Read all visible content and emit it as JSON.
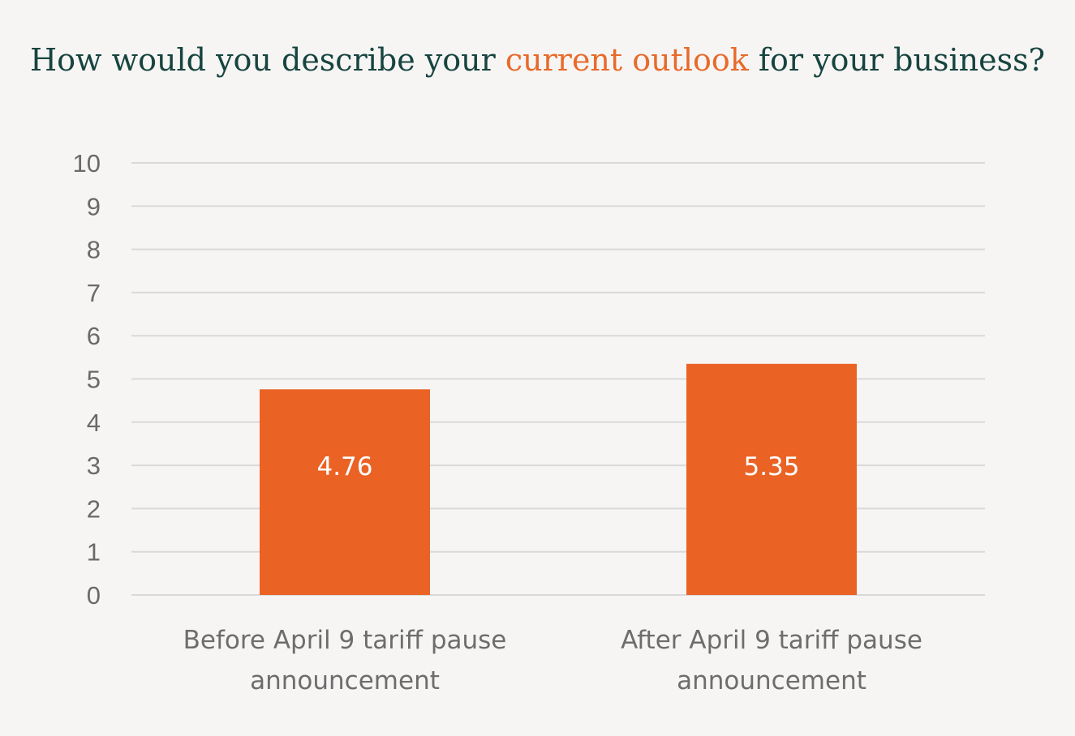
{
  "title": {
    "prefix": "How would you describe your ",
    "highlight": "current outlook",
    "suffix": " for your business?"
  },
  "colors": {
    "background": "#f6f5f4",
    "title": "#17443f",
    "title_highlight": "#e86a2a",
    "bar": "#ea6325",
    "gridline": "#d9d9d9",
    "axis_text": "#6a6a6a",
    "data_label": "#ffffff"
  },
  "chart_data": {
    "type": "bar",
    "categories": [
      [
        "Before April 9 tariff pause",
        "announcement"
      ],
      [
        "After April 9 tariff pause",
        "announcement"
      ]
    ],
    "values": [
      4.76,
      5.35
    ],
    "data_labels": [
      "4.76",
      "5.35"
    ],
    "title": "How would you describe your current outlook for your business?",
    "xlabel": "",
    "ylabel": "",
    "ylim": [
      0,
      10
    ],
    "yticks": [
      "0",
      "1",
      "2",
      "3",
      "4",
      "5",
      "6",
      "7",
      "8",
      "9",
      "10"
    ],
    "grid": true,
    "legend": "none"
  }
}
